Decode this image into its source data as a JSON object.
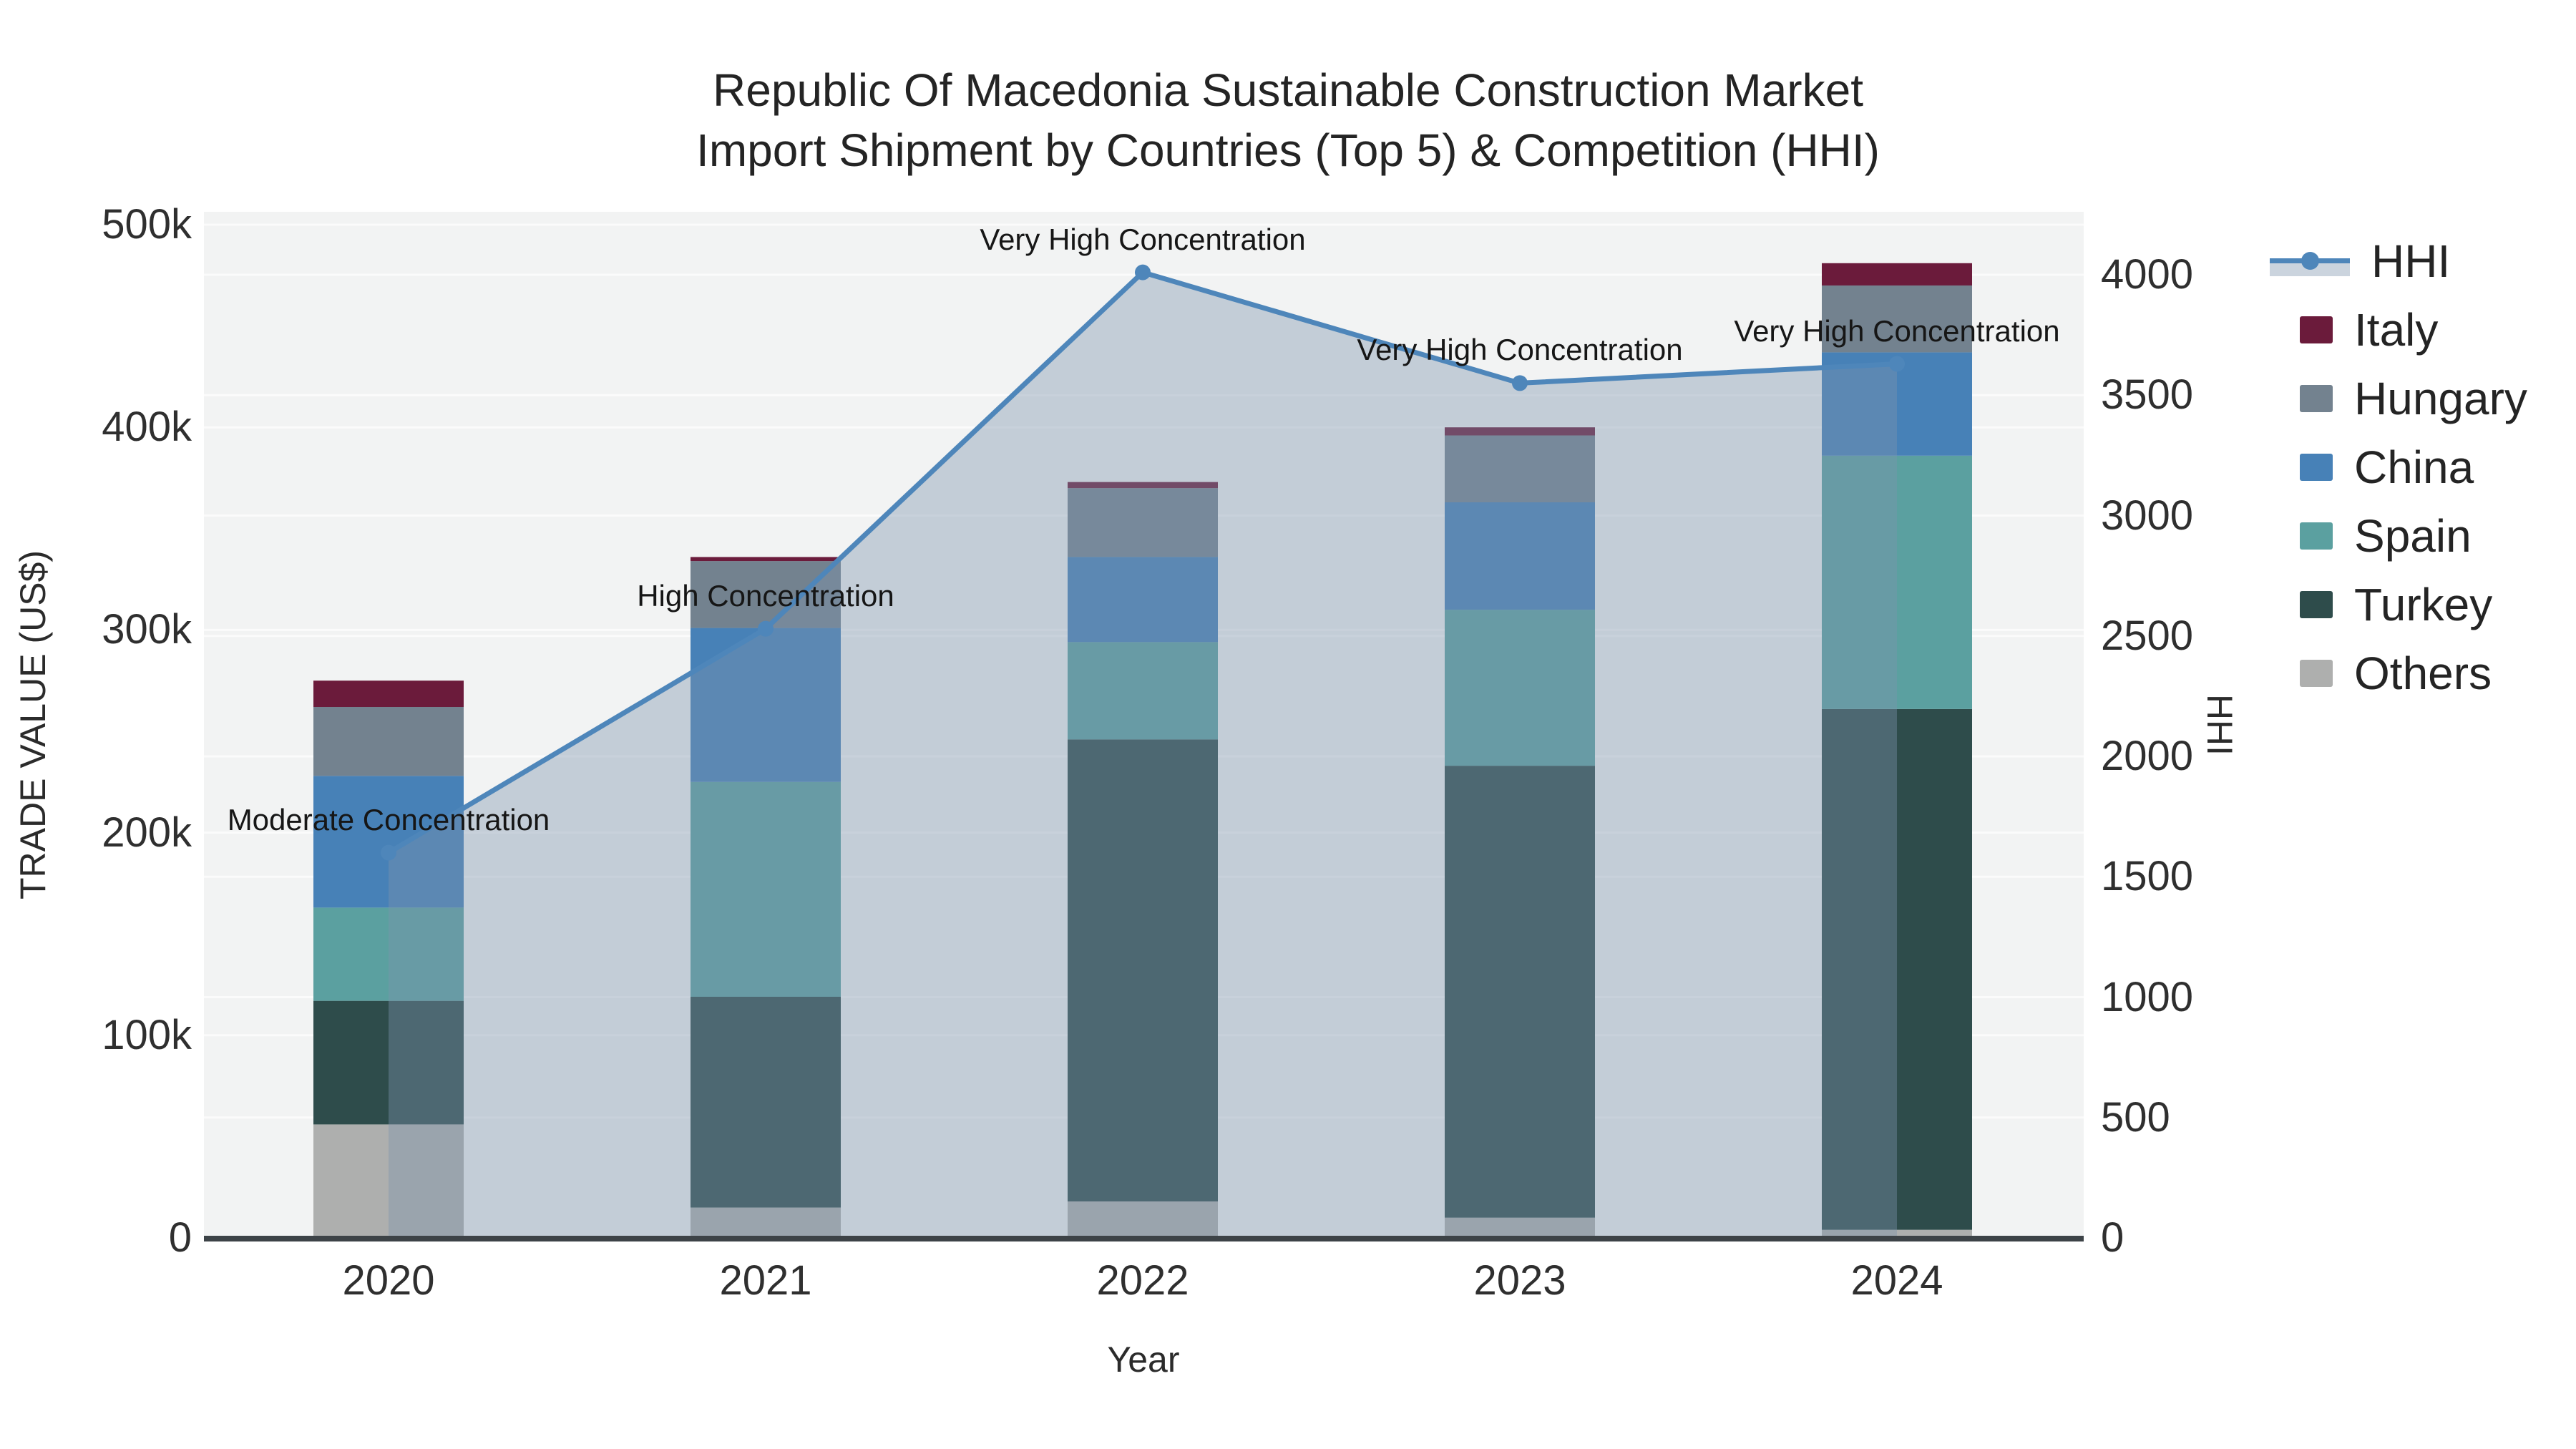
{
  "title": {
    "line1": "Republic Of Macedonia Sustainable Construction Market",
    "line2": "Import Shipment by Countries (Top 5) & Competition (HHI)"
  },
  "axes": {
    "left": {
      "title": "TRADE VALUE (US$)",
      "tick_labels": [
        "0",
        "100k",
        "200k",
        "300k",
        "400k",
        "500k"
      ],
      "tick_values": [
        0,
        100000,
        200000,
        300000,
        400000,
        500000
      ],
      "range": [
        0,
        500000
      ]
    },
    "right": {
      "title": "HHI",
      "tick_labels": [
        "0",
        "500",
        "1000",
        "1500",
        "2000",
        "2500",
        "3000",
        "3500",
        "4000"
      ],
      "tick_values": [
        0,
        500,
        1000,
        1500,
        2000,
        2500,
        3000,
        3500,
        4000
      ],
      "range": [
        0,
        4000
      ]
    },
    "x": {
      "title": "Year",
      "categories": [
        "2020",
        "2021",
        "2022",
        "2023",
        "2024"
      ]
    }
  },
  "legend": {
    "items": [
      {
        "label": "HHI",
        "type": "line",
        "color": "#4e86ba"
      },
      {
        "label": "Italy",
        "type": "swatch",
        "color": "#6b1b3b"
      },
      {
        "label": "Hungary",
        "type": "swatch",
        "color": "#73828f"
      },
      {
        "label": "China",
        "type": "swatch",
        "color": "#4781b7"
      },
      {
        "label": "Spain",
        "type": "swatch",
        "color": "#5ba0a0"
      },
      {
        "label": "Turkey",
        "type": "swatch",
        "color": "#2e4c4b"
      },
      {
        "label": "Others",
        "type": "swatch",
        "color": "#aeafae"
      }
    ]
  },
  "chart_data": {
    "type": "bar+line",
    "x": [
      "2020",
      "2021",
      "2022",
      "2023",
      "2024"
    ],
    "stack_order_note": "bars stacked bottom to top in series order below",
    "bar_series": [
      {
        "name": "Others",
        "color": "#aeafae",
        "values": [
          56000,
          15000,
          18000,
          10000,
          4000
        ]
      },
      {
        "name": "Turkey",
        "color": "#2e4c4b",
        "values": [
          61000,
          104000,
          228000,
          223000,
          257000
        ]
      },
      {
        "name": "Spain",
        "color": "#5ba0a0",
        "values": [
          46000,
          106000,
          48000,
          77000,
          125000
        ]
      },
      {
        "name": "China",
        "color": "#4781b7",
        "values": [
          65000,
          76000,
          42000,
          53000,
          51000
        ]
      },
      {
        "name": "Hungary",
        "color": "#73828f",
        "values": [
          34000,
          33000,
          34000,
          33000,
          33000
        ]
      },
      {
        "name": "Italy",
        "color": "#6b1b3b",
        "values": [
          13000,
          2000,
          3000,
          4000,
          11000
        ]
      }
    ],
    "bar_totals": [
      275000,
      336000,
      373000,
      400000,
      481000
    ],
    "line_series": {
      "name": "HHI",
      "color": "#4e86ba",
      "fill": "rgba(126,147,172,0.40)",
      "values": [
        1600,
        2530,
        4010,
        3550,
        3630
      ]
    },
    "annotations": [
      {
        "x": "2020",
        "text": "Moderate Concentration"
      },
      {
        "x": "2021",
        "text": "High Concentration"
      },
      {
        "x": "2022",
        "text": "Very High Concentration"
      },
      {
        "x": "2023",
        "text": "Very High Concentration"
      },
      {
        "x": "2024",
        "text": "Very High Concentration"
      }
    ],
    "xlabel": "Year",
    "ylabel_left": "TRADE VALUE (US$)",
    "ylabel_right": "HHI",
    "ylim_left": [
      0,
      500000
    ],
    "ylim_right": [
      0,
      4000
    ],
    "grid": true,
    "legend_position": "right",
    "plot_bg": "#f2f3f3",
    "grid_color": "#fbfbfb",
    "axisline_color": "#3d4347"
  }
}
